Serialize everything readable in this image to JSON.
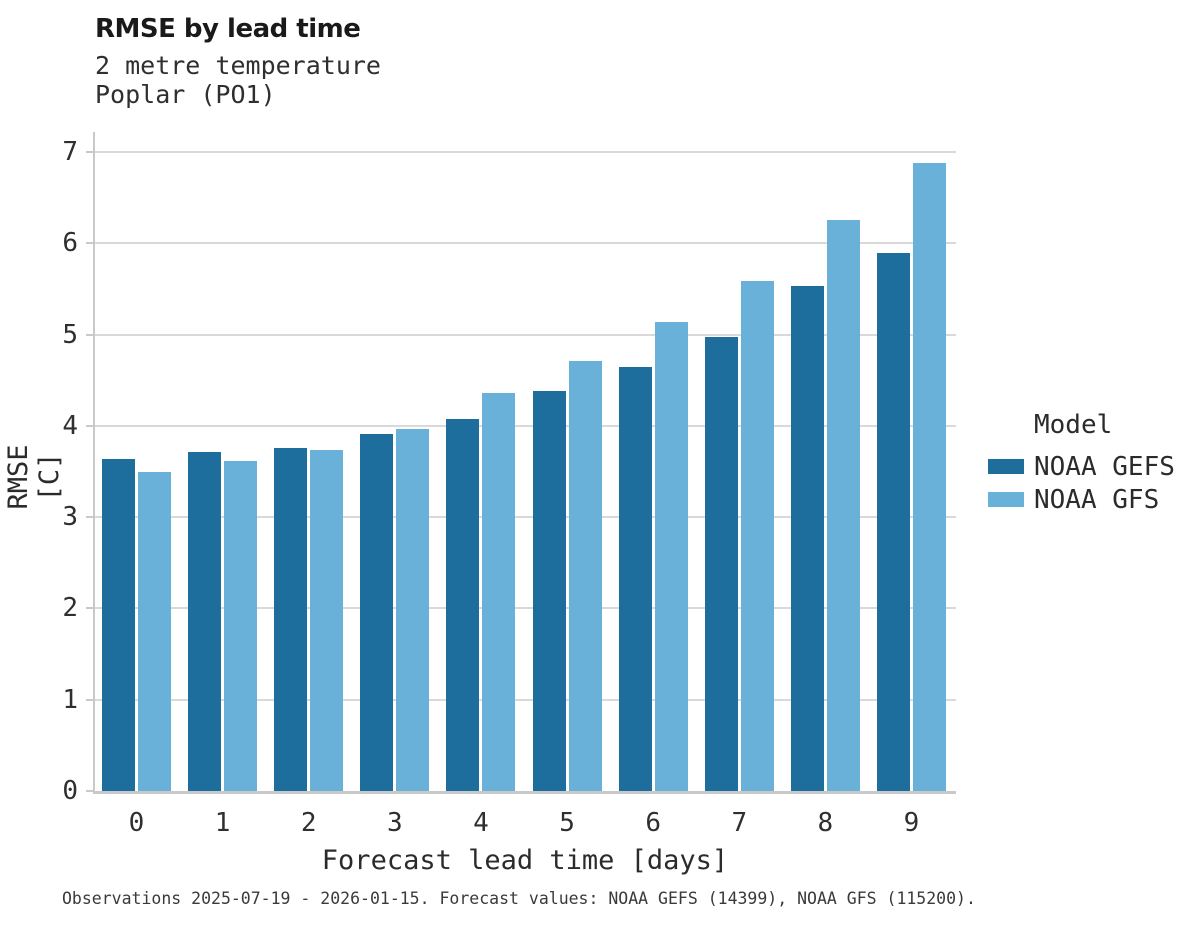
{
  "title": "RMSE by lead time",
  "subtitle_line1": "2 metre temperature",
  "subtitle_line2": "Poplar (PO1)",
  "caption": "Observations 2025-07-19 - 2026-01-15. Forecast values: NOAA GEFS (14399), NOAA GFS (115200).",
  "colors": {
    "gefs": "#1d6e9c",
    "gfs": "#69b1d9",
    "grid": "#d9d9d9",
    "spine": "#c9c9c9",
    "text": "#2b2b2b"
  },
  "legend": {
    "title": "Model",
    "items": [
      {
        "label": "NOAA GEFS",
        "color": "#1d6e9c"
      },
      {
        "label": "NOAA GFS",
        "color": "#69b1d9"
      }
    ]
  },
  "chart_data": {
    "type": "bar",
    "title": "RMSE by lead time",
    "subtitle": [
      "2 metre temperature",
      "Poplar (PO1)"
    ],
    "xlabel": "Forecast lead time [days]",
    "ylabel": "RMSE [C]",
    "categories": [
      "0",
      "1",
      "2",
      "3",
      "4",
      "5",
      "6",
      "7",
      "8",
      "9"
    ],
    "series": [
      {
        "name": "NOAA GEFS",
        "color": "#1d6e9c",
        "values": [
          3.64,
          3.71,
          3.76,
          3.91,
          4.08,
          4.38,
          4.64,
          4.97,
          5.53,
          5.89
        ]
      },
      {
        "name": "NOAA GFS",
        "color": "#69b1d9",
        "values": [
          3.49,
          3.61,
          3.74,
          3.97,
          4.36,
          4.71,
          5.14,
          5.59,
          6.26,
          6.88
        ]
      }
    ],
    "ylim": [
      0,
      7.2
    ],
    "yticks": [
      0,
      1,
      2,
      3,
      4,
      5,
      6,
      7
    ],
    "grid": true,
    "legend_position": "right",
    "legend_title": "Model"
  }
}
